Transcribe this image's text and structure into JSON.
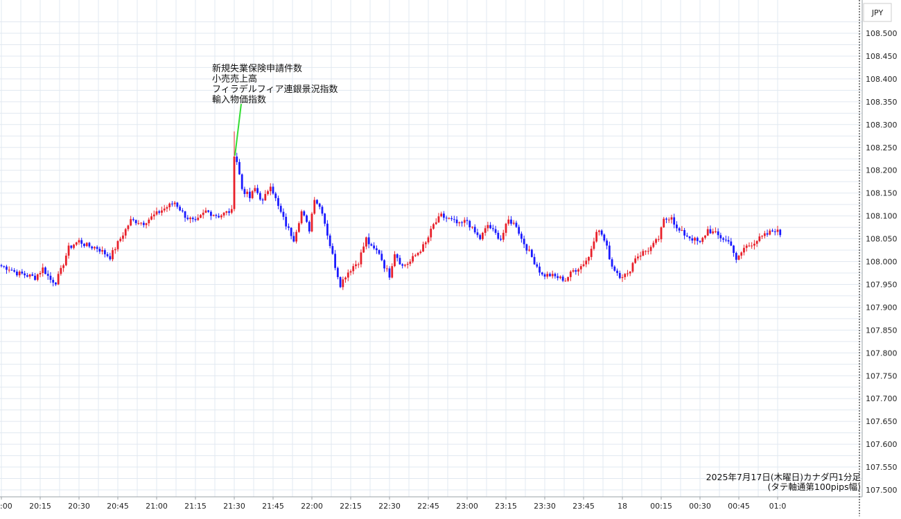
{
  "chart_data": {
    "type": "candlestick",
    "currency_label": "JPY",
    "caption_line1": "2025年7月17日(木曜日)カナダ円1分足",
    "caption_line2": "(タテ軸通第100pips幅)",
    "annotation_lines": [
      "新規失業保険申請件数",
      "小売売上高",
      "フィラデルフィア連銀景況指数",
      "輸入物価指数"
    ],
    "ylim": [
      107.5,
      108.5
    ],
    "y_ticks": [
      "107.500",
      "107.550",
      "107.600",
      "107.650",
      "107.700",
      "107.750",
      "107.800",
      "107.850",
      "107.900",
      "107.950",
      "108.000",
      "108.050",
      "108.100",
      "108.150",
      "108.200",
      "108.250",
      "108.300",
      "108.350",
      "108.400",
      "108.450",
      "108.500"
    ],
    "x_ticks": [
      ":00",
      "20:15",
      "20:30",
      "20:45",
      "21:00",
      "21:15",
      "21:30",
      "21:45",
      "22:00",
      "22:15",
      "22:30",
      "22:45",
      "23:00",
      "23:15",
      "23:30",
      "23:45",
      "18",
      "00:15",
      "00:30",
      "00:45",
      "01:0"
    ],
    "x_tick_minutes": [
      0,
      15,
      30,
      45,
      60,
      75,
      90,
      105,
      120,
      135,
      150,
      165,
      180,
      195,
      210,
      225,
      240,
      255,
      270,
      285,
      300
    ],
    "x_range_minutes": [
      0,
      301
    ],
    "annotation_minute": 90,
    "up_color": "#e8202a",
    "down_color": "#1a1aff",
    "grid_color": "#e1e8f0",
    "annotation_line_color": "#33dd33",
    "key_points": [
      [
        0,
        107.99
      ],
      [
        3,
        107.985
      ],
      [
        6,
        107.975
      ],
      [
        10,
        107.97
      ],
      [
        13,
        107.965
      ],
      [
        16,
        107.985
      ],
      [
        19,
        107.96
      ],
      [
        21,
        107.955
      ],
      [
        23,
        107.98
      ],
      [
        26,
        108.03
      ],
      [
        30,
        108.045
      ],
      [
        33,
        108.035
      ],
      [
        37,
        108.03
      ],
      [
        42,
        108.01
      ],
      [
        46,
        108.05
      ],
      [
        50,
        108.09
      ],
      [
        55,
        108.085
      ],
      [
        60,
        108.105
      ],
      [
        64,
        108.12
      ],
      [
        67,
        108.13
      ],
      [
        71,
        108.1
      ],
      [
        75,
        108.085
      ],
      [
        79,
        108.11
      ],
      [
        84,
        108.1
      ],
      [
        88,
        108.11
      ],
      [
        89,
        108.115
      ],
      [
        90,
        108.23
      ],
      [
        91,
        108.22
      ],
      [
        93,
        108.16
      ],
      [
        96,
        108.14
      ],
      [
        98,
        108.16
      ],
      [
        101,
        108.13
      ],
      [
        104,
        108.17
      ],
      [
        107,
        108.12
      ],
      [
        110,
        108.08
      ],
      [
        113,
        108.05
      ],
      [
        116,
        108.11
      ],
      [
        119,
        108.07
      ],
      [
        121,
        108.14
      ],
      [
        124,
        108.11
      ],
      [
        126,
        108.06
      ],
      [
        129,
        107.99
      ],
      [
        131,
        107.95
      ],
      [
        133,
        107.97
      ],
      [
        136,
        107.99
      ],
      [
        138,
        108.0
      ],
      [
        141,
        108.05
      ],
      [
        143,
        108.03
      ],
      [
        146,
        108.02
      ],
      [
        148,
        107.99
      ],
      [
        150,
        107.97
      ],
      [
        152,
        108.02
      ],
      [
        155,
        107.99
      ],
      [
        158,
        108.0
      ],
      [
        161,
        108.02
      ],
      [
        164,
        108.04
      ],
      [
        167,
        108.08
      ],
      [
        170,
        108.1
      ],
      [
        174,
        108.09
      ],
      [
        177,
        108.08
      ],
      [
        180,
        108.09
      ],
      [
        182,
        108.07
      ],
      [
        185,
        108.05
      ],
      [
        188,
        108.08
      ],
      [
        191,
        108.06
      ],
      [
        193,
        108.05
      ],
      [
        196,
        108.09
      ],
      [
        199,
        108.08
      ],
      [
        201,
        108.05
      ],
      [
        203,
        108.03
      ],
      [
        206,
        108.0
      ],
      [
        209,
        107.97
      ],
      [
        212,
        107.97
      ],
      [
        215,
        107.965
      ],
      [
        218,
        107.96
      ],
      [
        221,
        107.98
      ],
      [
        224,
        107.99
      ],
      [
        227,
        108.01
      ],
      [
        230,
        108.07
      ],
      [
        232,
        108.06
      ],
      [
        234,
        108.03
      ],
      [
        236,
        107.99
      ],
      [
        239,
        107.97
      ],
      [
        242,
        107.97
      ],
      [
        245,
        108.01
      ],
      [
        248,
        108.02
      ],
      [
        251,
        108.03
      ],
      [
        254,
        108.05
      ],
      [
        256,
        108.09
      ],
      [
        259,
        108.1
      ],
      [
        261,
        108.07
      ],
      [
        264,
        108.06
      ],
      [
        267,
        108.05
      ],
      [
        270,
        108.04
      ],
      [
        273,
        108.07
      ],
      [
        276,
        108.06
      ],
      [
        279,
        108.05
      ],
      [
        282,
        108.04
      ],
      [
        284,
        108.0
      ],
      [
        287,
        108.03
      ],
      [
        290,
        108.04
      ],
      [
        293,
        108.05
      ],
      [
        296,
        108.06
      ],
      [
        299,
        108.07
      ],
      [
        301,
        108.06
      ]
    ]
  }
}
